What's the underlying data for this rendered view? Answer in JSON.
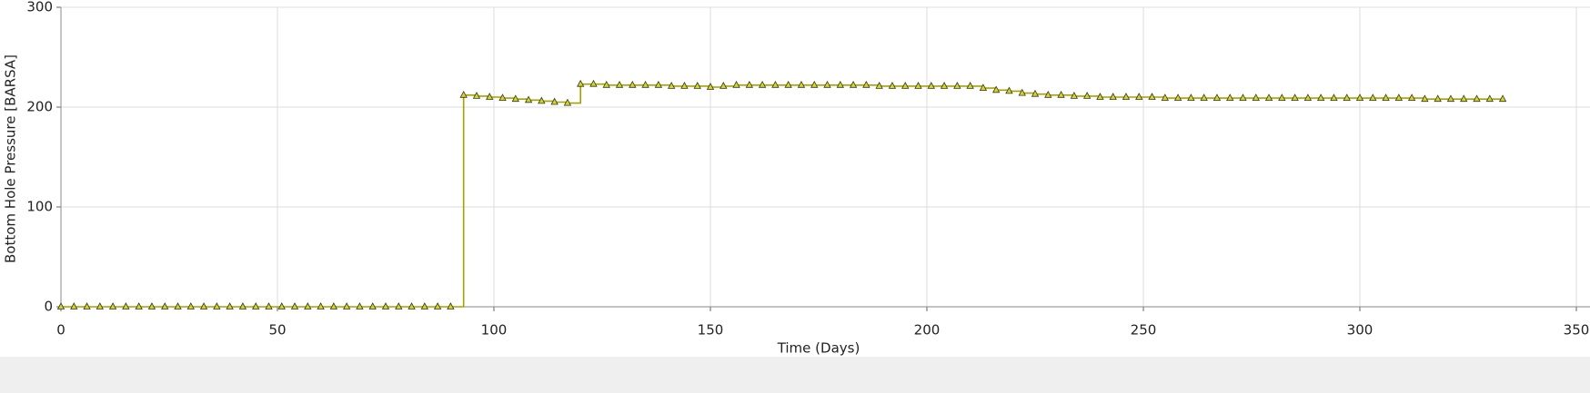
{
  "chart_data": {
    "type": "line",
    "xlabel": "Time (Days)",
    "ylabel": "Bottom Hole Pressure [BARSA]",
    "x": [
      0,
      3,
      6,
      9,
      12,
      15,
      18,
      21,
      24,
      27,
      30,
      33,
      36,
      39,
      42,
      45,
      48,
      51,
      54,
      57,
      60,
      63,
      66,
      69,
      72,
      75,
      78,
      81,
      84,
      87,
      90,
      93,
      96,
      99,
      102,
      105,
      108,
      111,
      114,
      117,
      120,
      123,
      126,
      129,
      132,
      135,
      138,
      141,
      144,
      147,
      150,
      153,
      156,
      159,
      162,
      165,
      168,
      171,
      174,
      177,
      180,
      183,
      186,
      189,
      192,
      195,
      198,
      201,
      204,
      207,
      210,
      213,
      216,
      219,
      222,
      225,
      228,
      231,
      234,
      237,
      240,
      243,
      246,
      249,
      252,
      255,
      258,
      261,
      264,
      267,
      270,
      273,
      276,
      279,
      282,
      285,
      288,
      291,
      294,
      297,
      300,
      303,
      306,
      309,
      312,
      315,
      318,
      321,
      324,
      327,
      330,
      333
    ],
    "series": [
      {
        "name": "Bottom Hole Pressure",
        "color": "#a3a300",
        "marker_color": "#d6d61a",
        "values": [
          0,
          0,
          0,
          0,
          0,
          0,
          0,
          0,
          0,
          0,
          0,
          0,
          0,
          0,
          0,
          0,
          0,
          0,
          0,
          0,
          0,
          0,
          0,
          0,
          0,
          0,
          0,
          0,
          0,
          0,
          0,
          212,
          211,
          210,
          209,
          208,
          207,
          206,
          205,
          204,
          223,
          223,
          222,
          222,
          222,
          222,
          222,
          221,
          221,
          221,
          220,
          221,
          222,
          222,
          222,
          222,
          222,
          222,
          222,
          222,
          222,
          222,
          222,
          221,
          221,
          221,
          221,
          221,
          221,
          221,
          221,
          219,
          217,
          216,
          214,
          213,
          212,
          212,
          211,
          211,
          210,
          210,
          210,
          210,
          210,
          209,
          209,
          209,
          209,
          209,
          209,
          209,
          209,
          209,
          209,
          209,
          209,
          209,
          209,
          209,
          209,
          209,
          209,
          209,
          209,
          208,
          208,
          208,
          208,
          208,
          208,
          208
        ]
      }
    ],
    "xlim": [
      0,
      350
    ],
    "xticks": [
      0,
      50,
      100,
      150,
      200,
      250,
      300,
      350
    ],
    "ylim": [
      0,
      300
    ],
    "yticks": [
      0,
      100,
      200,
      300
    ],
    "grid": true
  }
}
